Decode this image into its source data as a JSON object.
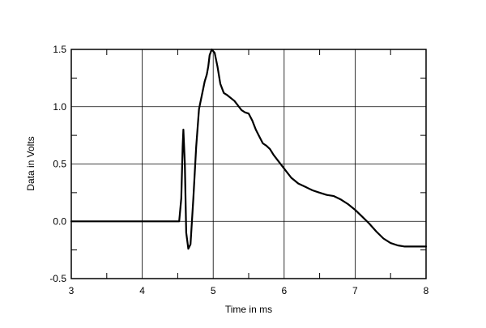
{
  "chart_data": {
    "type": "line",
    "title": "",
    "xlabel": "Time in ms",
    "ylabel": "Data in Volts",
    "xlim": [
      3,
      8
    ],
    "ylim": [
      -0.5,
      1.5
    ],
    "xticks": [
      3,
      4,
      5,
      6,
      7,
      8
    ],
    "yticks": [
      -0.5,
      0.0,
      0.5,
      1.0,
      1.5
    ],
    "xtick_labels": [
      "3",
      "4",
      "5",
      "6",
      "7",
      "8"
    ],
    "ytick_labels": [
      "-0.5",
      "0.0",
      "0.5",
      "1.0",
      "1.5"
    ],
    "grid": true,
    "minor_ticks": true,
    "line_color": "#000000",
    "series": [
      {
        "x": [
          3.0,
          4.0,
          4.52,
          4.55,
          4.57,
          4.58,
          4.6,
          4.62,
          4.65,
          4.68,
          4.72,
          4.76,
          4.8,
          4.84,
          4.88,
          4.91,
          4.93,
          4.95,
          4.98,
          5.02,
          5.06,
          5.1,
          5.15,
          5.2,
          5.3,
          5.4,
          5.45,
          5.5,
          5.55,
          5.6,
          5.65,
          5.7,
          5.75,
          5.8,
          5.85,
          5.9,
          6.0,
          6.1,
          6.2,
          6.3,
          6.4,
          6.5,
          6.6,
          6.7,
          6.8,
          6.9,
          7.0,
          7.1,
          7.2,
          7.3,
          7.4,
          7.5,
          7.6,
          7.7,
          7.8,
          7.9,
          8.0
        ],
        "y": [
          0.0,
          0.0,
          0.0,
          0.2,
          0.65,
          0.8,
          0.5,
          -0.1,
          -0.24,
          -0.2,
          0.2,
          0.65,
          0.98,
          1.1,
          1.22,
          1.28,
          1.35,
          1.45,
          1.5,
          1.47,
          1.35,
          1.2,
          1.12,
          1.1,
          1.05,
          0.97,
          0.95,
          0.94,
          0.88,
          0.8,
          0.74,
          0.68,
          0.66,
          0.63,
          0.58,
          0.54,
          0.46,
          0.38,
          0.33,
          0.3,
          0.27,
          0.25,
          0.23,
          0.22,
          0.19,
          0.15,
          0.1,
          0.04,
          -0.02,
          -0.09,
          -0.15,
          -0.19,
          -0.21,
          -0.22,
          -0.22,
          -0.22,
          -0.22
        ]
      }
    ]
  }
}
